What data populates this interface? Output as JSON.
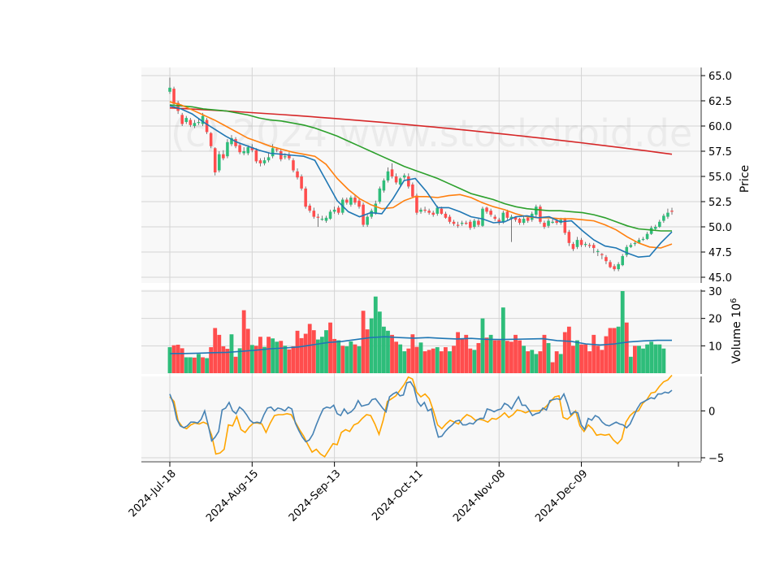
{
  "watermark": "(c) 2024 www.stockdroid.de",
  "colors": {
    "up": "#2ebd7a",
    "down": "#ff4d4d",
    "grid": "#d4d4d4",
    "panel_bg": "#f8f8f8",
    "sma10": "#1f77b4",
    "ema20": "#ff7f0e",
    "sma50": "#2ca02c",
    "sma200": "#d62728",
    "volume_ma": "#1f77b4",
    "macd": "#4682b4",
    "signal": "#ffa500"
  },
  "chart_data": {
    "type": "candlestick",
    "x": {
      "start": "2024-07-18",
      "ticks": [
        "2024-Jul-18",
        "2024-Aug-15",
        "2024-Sep-13",
        "2024-Oct-11",
        "2024-Nov-08",
        "2024-Dec-09"
      ],
      "tick_positions": [
        0,
        20,
        40,
        60,
        80,
        100
      ]
    },
    "price_panel": {
      "ylabel": "Price",
      "ylim": [
        45.0,
        65.0
      ],
      "yticks": [
        "45.0",
        "47.5",
        "50.0",
        "52.5",
        "55.0",
        "57.5",
        "60.0",
        "62.5",
        "65.0"
      ],
      "closes": [
        63.8,
        62.2,
        61.5,
        60.2,
        60.8,
        60.1,
        60.3,
        60.4,
        61.0,
        59.4,
        58.0,
        55.4,
        57.2,
        56.8,
        58.4,
        58.8,
        58.0,
        57.4,
        57.5,
        57.9,
        57.6,
        56.5,
        56.3,
        56.6,
        56.9,
        57.8,
        57.6,
        56.7,
        57.0,
        56.8,
        55.6,
        54.9,
        53.8,
        52.0,
        51.6,
        51.0,
        50.9,
        50.8,
        50.9,
        51.5,
        51.7,
        51.4,
        52.7,
        52.4,
        52.9,
        52.4,
        52.0,
        50.2,
        51.0,
        51.6,
        52.3,
        53.8,
        54.6,
        55.5,
        55.0,
        54.4,
        54.8,
        55.1,
        54.0,
        53.0,
        51.4,
        51.7,
        51.6,
        51.4,
        51.2,
        51.9,
        51.3,
        50.9,
        50.5,
        50.3,
        50.1,
        50.4,
        50.3,
        49.9,
        50.6,
        50.2,
        51.8,
        51.5,
        51.2,
        50.8,
        50.4,
        51.4,
        50.9,
        51.0,
        50.7,
        50.4,
        50.8,
        50.6,
        51.3,
        52.0,
        50.5,
        50.0,
        50.6,
        50.5,
        50.4,
        50.7,
        49.4,
        48.4,
        47.8,
        48.7,
        48.2,
        48.3,
        48.1,
        47.9,
        47.6,
        47.2,
        46.6,
        46.0,
        45.8,
        46.3,
        47.1,
        48.0,
        48.2,
        48.4,
        48.7,
        48.8,
        49.3,
        49.9,
        50.0,
        50.5,
        51.1,
        51.4,
        51.5
      ],
      "opens": [
        63.4,
        63.7,
        62.3,
        61.1,
        60.4,
        60.6,
        60.0,
        60.4,
        60.2,
        60.6,
        59.3,
        57.8,
        55.6,
        57.2,
        57.0,
        58.2,
        58.7,
        58.1,
        57.3,
        57.3,
        57.9,
        57.6,
        56.6,
        56.3,
        56.6,
        57.0,
        57.7,
        57.5,
        56.9,
        57.1,
        56.6,
        55.5,
        55.0,
        53.8,
        52.1,
        51.6,
        51.0,
        50.8,
        50.6,
        50.8,
        51.5,
        51.9,
        51.4,
        52.7,
        52.2,
        52.9,
        52.6,
        52.2,
        50.2,
        51.0,
        51.4,
        52.5,
        53.6,
        54.6,
        55.7,
        55.0,
        54.2,
        54.9,
        55.0,
        54.2,
        53.1,
        51.5,
        51.7,
        51.6,
        51.4,
        51.3,
        51.8,
        51.3,
        51.0,
        50.5,
        50.2,
        50.3,
        50.4,
        50.5,
        50.0,
        50.6,
        50.1,
        51.9,
        51.6,
        51.0,
        50.7,
        50.5,
        51.5,
        50.8,
        51.0,
        50.8,
        50.4,
        50.9,
        50.7,
        51.2,
        52.0,
        50.4,
        50.1,
        50.5,
        50.6,
        50.4,
        50.8,
        49.5,
        48.3,
        48.0,
        48.7,
        48.3,
        48.2,
        48.2,
        47.6,
        47.3,
        47.0,
        46.5,
        46.1,
        45.8,
        46.2,
        47.2,
        48.0,
        48.3,
        48.4,
        48.8,
        48.8,
        49.3,
        49.8,
        50.0,
        50.6,
        51.0,
        51.6
      ],
      "highs": [
        64.8,
        63.9,
        62.5,
        61.3,
        61.0,
        60.8,
        60.6,
        60.7,
        61.3,
        60.8,
        59.4,
        57.9,
        57.5,
        57.6,
        58.7,
        59.1,
        58.9,
        58.3,
        57.9,
        58.1,
        58.2,
        57.8,
        56.8,
        56.9,
        57.3,
        58.2,
        57.9,
        57.7,
        57.3,
        57.4,
        56.8,
        55.8,
        55.2,
        54.0,
        52.3,
        51.9,
        51.3,
        51.1,
        51.1,
        51.7,
        52.0,
        52.1,
        52.9,
        52.9,
        53.1,
        53.1,
        52.8,
        52.4,
        51.2,
        51.8,
        52.6,
        54.0,
        54.8,
        55.9,
        56.3,
        55.3,
        54.9,
        55.3,
        55.3,
        54.4,
        53.3,
        51.9,
        52.0,
        51.8,
        51.6,
        52.1,
        52.0,
        51.5,
        51.2,
        50.7,
        50.5,
        50.6,
        50.6,
        50.7,
        50.8,
        50.8,
        52.0,
        52.0,
        51.8,
        51.2,
        50.9,
        51.6,
        51.7,
        51.2,
        51.0,
        50.9,
        51.0,
        51.1,
        51.5,
        52.2,
        52.2,
        50.6,
        50.8,
        50.8,
        50.8,
        50.9,
        50.9,
        49.7,
        48.5,
        49.0,
        48.9,
        48.5,
        48.4,
        48.4,
        47.8,
        47.4,
        47.2,
        46.7,
        46.3,
        46.5,
        47.3,
        48.2,
        48.4,
        48.6,
        48.9,
        49.0,
        49.5,
        50.1,
        50.2,
        50.7,
        51.3,
        51.8,
        51.9
      ],
      "lows": [
        63.2,
        62.0,
        61.2,
        60.0,
        60.2,
        59.9,
        59.8,
        60.1,
        60.0,
        59.2,
        57.8,
        55.1,
        55.4,
        56.6,
        56.8,
        58.0,
        57.8,
        57.2,
        57.1,
        57.1,
        57.4,
        56.3,
        56.0,
        56.1,
        56.4,
        56.8,
        57.4,
        56.5,
        56.7,
        56.6,
        55.4,
        54.7,
        53.6,
        51.8,
        51.4,
        50.8,
        50.0,
        50.6,
        50.4,
        50.7,
        51.3,
        51.2,
        51.2,
        52.2,
        52.0,
        52.2,
        51.8,
        50.0,
        50.0,
        50.8,
        51.2,
        52.3,
        53.4,
        54.4,
        54.8,
        54.2,
        54.0,
        54.7,
        53.8,
        52.9,
        51.2,
        51.3,
        51.4,
        51.2,
        51.0,
        51.1,
        51.2,
        50.8,
        50.3,
        50.1,
        49.9,
        50.1,
        50.2,
        49.7,
        49.8,
        50.0,
        50.0,
        51.3,
        51.0,
        50.6,
        50.2,
        50.3,
        50.7,
        48.5,
        50.5,
        50.2,
        50.2,
        50.4,
        50.5,
        51.0,
        50.3,
        49.8,
        49.9,
        50.3,
        50.2,
        50.2,
        49.2,
        48.1,
        47.6,
        47.8,
        48.0,
        48.0,
        47.9,
        47.4,
        47.1,
        46.8,
        46.3,
        45.9,
        45.6,
        45.6,
        46.1,
        47.0,
        47.9,
        48.1,
        48.5,
        48.6,
        48.7,
        49.2,
        49.7,
        49.9,
        50.4,
        50.8,
        51.2
      ],
      "sma200": {
        "start": 61.8,
        "end": 57.2
      },
      "sma50": [
        62.1,
        62.0,
        61.9,
        61.7,
        61.6,
        61.5,
        61.3,
        61.1,
        60.8,
        60.6,
        60.5,
        60.3,
        60.1,
        59.8,
        59.4,
        59.0,
        58.5,
        58.0,
        57.5,
        57.0,
        56.5,
        56.0,
        55.6,
        55.2,
        54.8,
        54.3,
        53.8,
        53.3,
        53.0,
        52.7,
        52.3,
        52.0,
        51.8,
        51.7,
        51.6,
        51.6,
        51.5,
        51.4,
        51.2,
        50.9,
        50.5,
        50.1,
        49.8,
        49.7,
        49.6,
        49.6
      ],
      "ema20": [
        62.4,
        62.1,
        61.6,
        61.1,
        60.6,
        60.0,
        59.4,
        58.8,
        58.4,
        58.0,
        57.7,
        57.4,
        57.2,
        57.0,
        56.2,
        54.8,
        53.7,
        52.8,
        52.2,
        51.8,
        51.9,
        52.6,
        53.0,
        53.0,
        52.9,
        53.1,
        53.2,
        52.9,
        52.4,
        52.0,
        51.7,
        51.3,
        51.0,
        50.9,
        50.9,
        50.8,
        50.8,
        50.7,
        50.6,
        50.2,
        49.7,
        49.0,
        48.4,
        48.0,
        47.9,
        48.3
      ],
      "sma10": [
        62.0,
        61.7,
        61.2,
        60.4,
        59.7,
        59.0,
        58.4,
        58.0,
        57.6,
        57.3,
        57.2,
        57.1,
        57.0,
        56.6,
        54.6,
        52.6,
        51.5,
        51.0,
        51.4,
        51.3,
        52.8,
        54.6,
        54.8,
        53.5,
        51.9,
        51.9,
        51.5,
        51.0,
        50.8,
        50.4,
        50.5,
        51.0,
        51.1,
        50.9,
        51.0,
        50.5,
        50.6,
        49.6,
        48.7,
        48.1,
        47.9,
        47.4,
        47.0,
        47.1,
        48.4,
        49.5
      ]
    },
    "volume_panel": {
      "ylabel": "Volume  10^6",
      "ylim": [
        0,
        30
      ],
      "yticks": [
        "10",
        "20",
        "30"
      ],
      "values": [
        9.5,
        10.2,
        10.4,
        9.1,
        5.8,
        5.8,
        5.7,
        7.0,
        5.8,
        5.5,
        9.5,
        16.5,
        14.0,
        9.8,
        8.9,
        14.2,
        6.0,
        9.1,
        23.0,
        16.2,
        10.3,
        10.0,
        13.3,
        9.6,
        13.3,
        12.7,
        11.5,
        11.8,
        10.0,
        8.7,
        9.8,
        15.5,
        12.8,
        14.4,
        18.0,
        15.7,
        12.3,
        13.3,
        15.7,
        18.5,
        12.5,
        12.0,
        10.0,
        9.8,
        11.6,
        10.5,
        9.8,
        22.8,
        16.0,
        20.0,
        28.0,
        22.5,
        17.0,
        15.5,
        14.0,
        11.5,
        10.5,
        8.0,
        9.0,
        14.2,
        9.6,
        11.2,
        8.0,
        8.5,
        9.0,
        9.5,
        8.0,
        9.5,
        8.0,
        10.0,
        15.0,
        12.6,
        14.0,
        9.0,
        8.5,
        11.0,
        20.0,
        13.0,
        14.0,
        12.0,
        12.0,
        24.0,
        11.8,
        11.5,
        14.0,
        12.0,
        10.0,
        8.0,
        8.5,
        7.0,
        8.0,
        14.0,
        11.0,
        4.0,
        8.0,
        7.0,
        15.0,
        17.0,
        10.0,
        12.0,
        10.5,
        10.5,
        8.0,
        14.0,
        10.0,
        8.5,
        13.5,
        16.5,
        16.5,
        17.0,
        30.0,
        18.5,
        6.0,
        10.0,
        10.0,
        9.0,
        10.5,
        11.5,
        10.5,
        10.5,
        9.0
      ],
      "up": [
        true,
        false,
        false,
        false,
        true,
        true,
        false,
        true,
        false,
        true,
        false,
        false,
        false,
        false,
        false,
        true,
        false,
        true,
        false,
        false,
        true,
        false,
        false,
        true,
        false,
        true,
        true,
        false,
        true,
        false,
        false,
        false,
        false,
        false,
        false,
        false,
        true,
        true,
        true,
        false,
        false,
        true,
        false,
        true,
        true,
        false,
        true,
        false,
        false,
        true,
        true,
        true,
        true,
        true,
        false,
        false,
        true,
        true,
        false,
        false,
        false,
        true,
        false,
        false,
        false,
        true,
        false,
        false,
        true,
        false,
        false,
        false,
        false,
        false,
        true,
        false,
        true,
        false,
        true,
        false,
        false,
        true,
        false,
        false,
        false,
        false,
        true,
        false,
        true,
        true,
        false,
        false,
        true,
        false,
        false,
        true,
        false,
        false,
        false,
        true,
        false,
        false,
        false,
        false,
        false,
        false,
        false,
        false,
        false,
        true,
        true,
        false,
        true,
        false,
        true,
        true,
        true,
        true,
        true,
        true,
        true,
        true,
        true
      ],
      "ma": [
        7.2,
        7.2,
        7.3,
        7.5,
        7.6,
        8.0,
        8.4,
        8.9,
        9.2,
        9.6,
        10.4,
        11.2,
        11.6,
        12.3,
        13.0,
        13.3,
        13.0,
        12.8,
        13.0,
        12.7,
        12.5,
        12.7,
        12.4,
        12.3,
        12.4,
        12.5,
        12.6,
        11.9,
        11.6,
        10.7,
        10.3,
        10.7,
        11.4,
        11.8,
        12.0,
        12.0
      ]
    },
    "macd_panel": {
      "yticks": [
        "-5",
        "0"
      ],
      "ylim": [
        -5,
        3.5
      ],
      "macd": [
        1.8,
        0.8,
        -0.9,
        -1.6,
        -1.8,
        -1.6,
        -1.2,
        -1.2,
        -1.3,
        -0.9,
        0.0,
        -1.5,
        -3.2,
        -2.8,
        -2.2,
        0.1,
        0.3,
        0.9,
        0.0,
        -0.3,
        0.4,
        0.1,
        -0.4,
        -1.0,
        -1.3,
        -1.2,
        -1.3,
        -0.4,
        0.3,
        0.4,
        0.0,
        0.3,
        0.2,
        0.0,
        0.4,
        0.2,
        -1.3,
        -2.1,
        -2.8,
        -3.3,
        -3.1,
        -2.5,
        -1.5,
        -0.6,
        0.2,
        0.4,
        0.3,
        0.6,
        -0.3,
        -0.5,
        0.2,
        -0.3,
        -0.1,
        0.3,
        1.1,
        0.5,
        0.6,
        0.7,
        1.2,
        1.3,
        0.8,
        0.3,
        -0.1,
        1.5,
        1.8,
        2.0,
        1.6,
        1.7,
        3.0,
        3.1,
        2.5,
        1.0,
        0.5,
        0.9,
        0.0,
        0.2,
        -1.5,
        -2.8,
        -2.7,
        -2.2,
        -1.8,
        -1.5,
        -1.1,
        -1.0,
        -1.5,
        -1.5,
        -1.3,
        -1.4,
        -1.0,
        -0.8,
        -0.8,
        0.2,
        0.1,
        -0.1,
        0.1,
        0.2,
        0.8,
        0.6,
        0.2,
        0.9,
        1.5,
        0.6,
        0.6,
        0.1,
        -0.5,
        -0.3,
        -0.2,
        0.3,
        0.1,
        1.1,
        1.2,
        1.3,
        1.2,
        1.8,
        0.8,
        -0.4,
        -0.1,
        -0.2,
        -1.5,
        -2.0,
        -0.8,
        -1.0,
        -0.5,
        -0.7,
        -1.2,
        -1.5,
        -1.6,
        -1.4,
        -1.2,
        -1.4,
        -1.5,
        -1.8,
        -1.4,
        -0.6,
        0.2,
        0.8,
        1.0,
        1.2,
        1.4,
        1.3,
        1.8,
        1.8,
        2.0,
        1.9,
        2.2
      ],
      "signal": [
        1.5,
        1.0,
        -1.1,
        -1.7,
        -1.9,
        -1.5,
        -1.3,
        -1.4,
        -1.2,
        -1.4,
        -2.6,
        -4.6,
        -4.5,
        -4.1,
        -1.5,
        -1.6,
        -0.6,
        -2.0,
        -2.3,
        -1.7,
        -1.3,
        -1.3,
        -1.4,
        -2.3,
        -1.3,
        -0.5,
        -0.4,
        -0.4,
        -0.3,
        -0.4,
        -1.2,
        -2.0,
        -2.7,
        -3.6,
        -4.4,
        -4.1,
        -4.6,
        -4.9,
        -4.2,
        -3.5,
        -3.6,
        -2.3,
        -2.0,
        -2.2,
        -1.5,
        -1.3,
        -0.8,
        -0.4,
        -0.5,
        -1.4,
        -2.5,
        -1.0,
        1.0,
        1.3,
        1.6,
        2.2,
        2.8,
        3.6,
        3.4,
        2.0,
        1.5,
        1.8,
        1.3,
        0.0,
        -1.5,
        -1.9,
        -1.4,
        -1.0,
        -1.2,
        -1.4,
        -0.8,
        -0.4,
        -0.6,
        -1.0,
        -0.9,
        -1.0,
        -1.2,
        -0.8,
        -0.9,
        -0.6,
        -0.2,
        -0.7,
        -0.4,
        0.1,
        0.0,
        -0.2,
        0.0,
        0.0,
        0.0,
        0.1,
        0.5,
        1.0,
        1.5,
        1.6,
        -0.7,
        -0.9,
        -0.5,
        0.0,
        -1.6,
        -2.2,
        -1.5,
        -1.9,
        -2.6,
        -2.5,
        -2.6,
        -2.5,
        -3.1,
        -3.5,
        -3.0,
        -1.2,
        -0.5,
        -0.1,
        0.0,
        0.8,
        1.2,
        1.9,
        2.0,
        2.6,
        3.1,
        3.3,
        3.8
      ]
    }
  }
}
